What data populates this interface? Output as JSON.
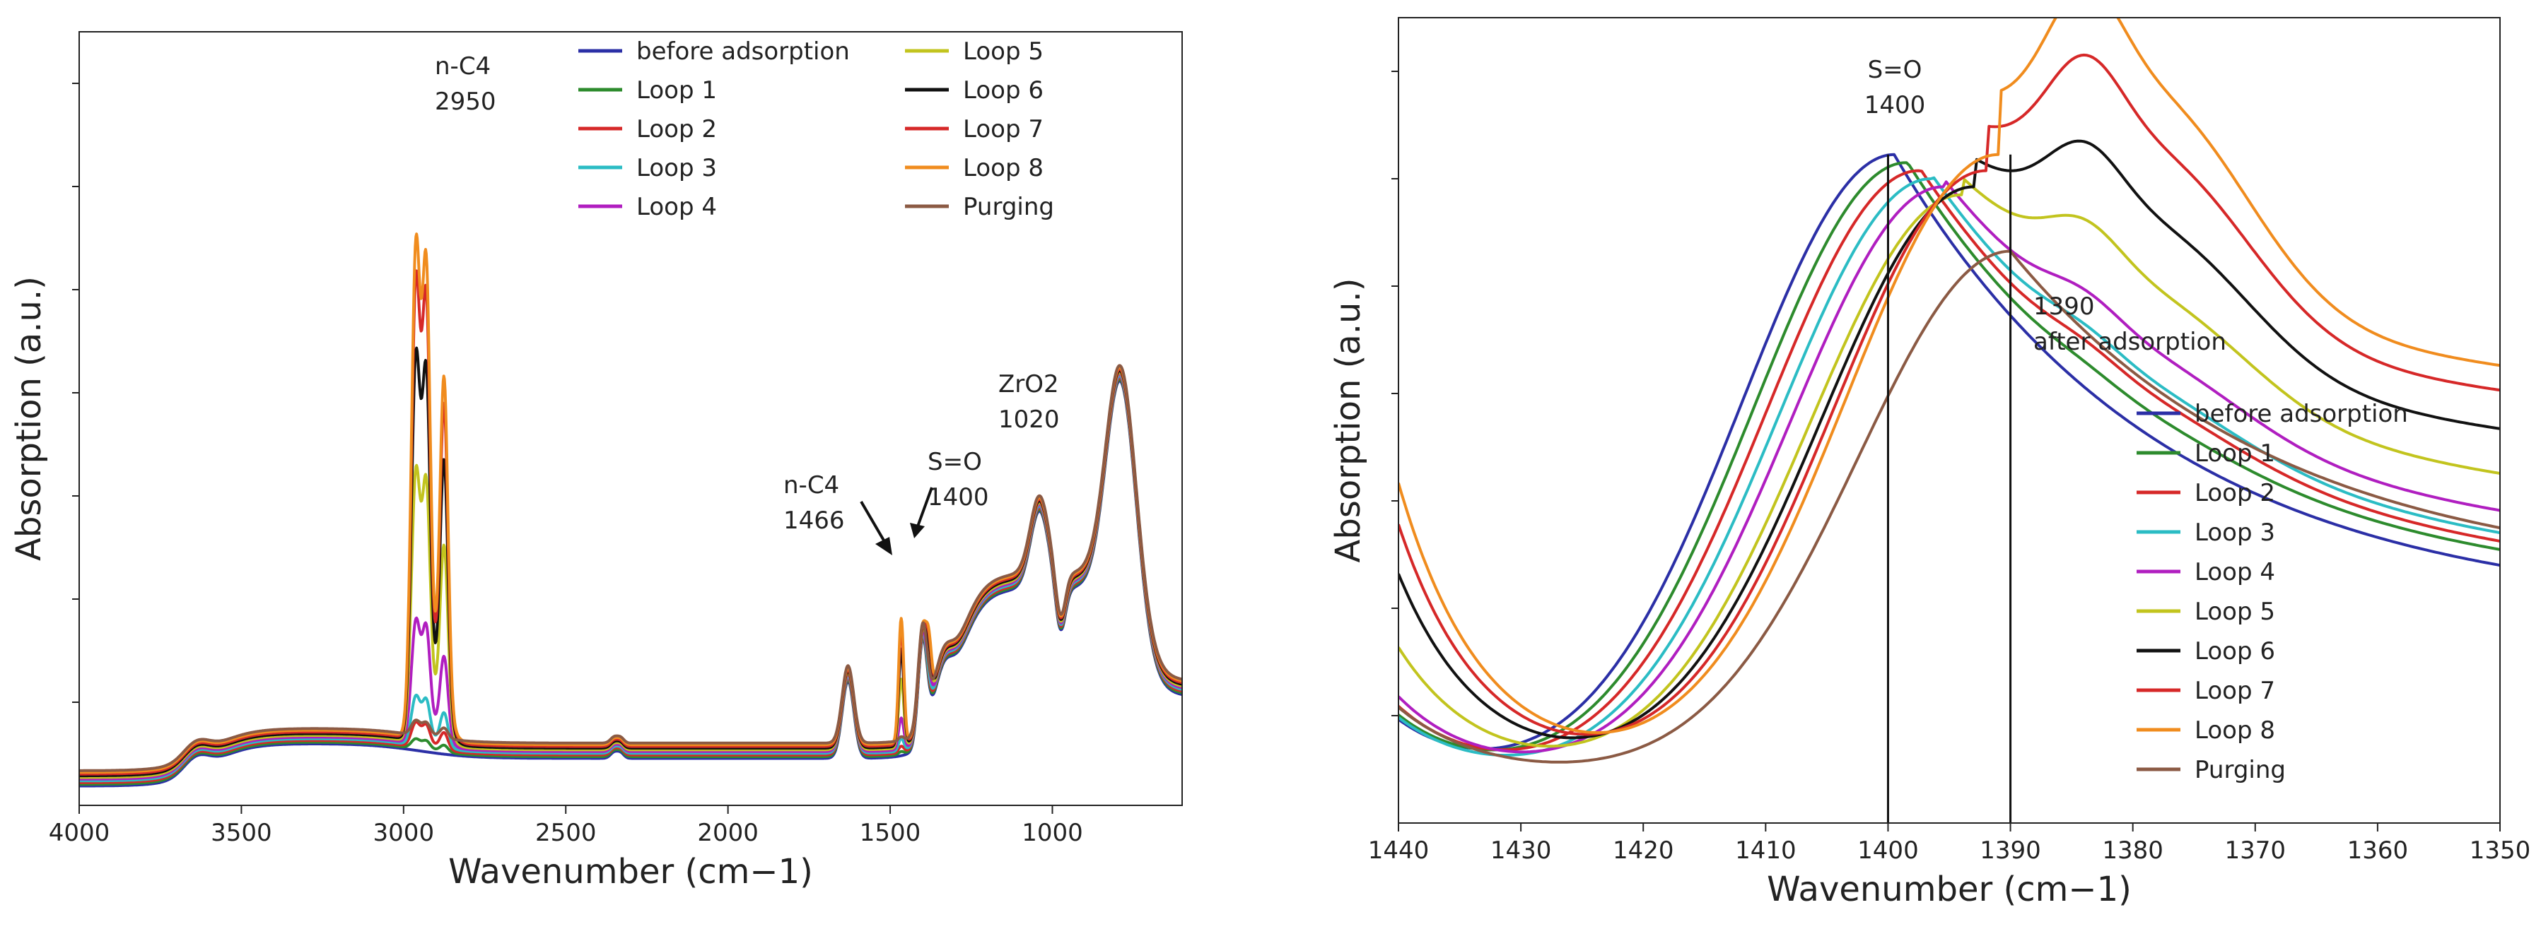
{
  "chart_data": [
    {
      "type": "line",
      "title": "",
      "xlabel": "Wavenumber (cm−1)",
      "ylabel": "Absorption (a.u.)",
      "xlim": [
        4000,
        600
      ],
      "ylim": [
        0,
        1
      ],
      "x_ticks": [
        4000,
        3500,
        3000,
        2500,
        2000,
        1500,
        1000
      ],
      "x_tick_labels": [
        "4000",
        "3500",
        "3000",
        "2500",
        "2000",
        "1500",
        "1000"
      ],
      "y_tick_labels_shown": false,
      "legend_position": "top-center",
      "legend_columns": 2,
      "series": [
        {
          "name": "before adsorption",
          "color": "#2b2fa6",
          "n_c4_scale": 0.0
        },
        {
          "name": "Loop 1",
          "color": "#2d8b2d",
          "n_c4_scale": 0.02
        },
        {
          "name": "Loop 2",
          "color": "#d62828",
          "n_c4_scale": 0.05
        },
        {
          "name": "Loop 3",
          "color": "#2bbcc4",
          "n_c4_scale": 0.1
        },
        {
          "name": "Loop 4",
          "color": "#b01ec0",
          "n_c4_scale": 0.25
        },
        {
          "name": "Loop 5",
          "color": "#c2c41e",
          "n_c4_scale": 0.55
        },
        {
          "name": "Loop 6",
          "color": "#111111",
          "n_c4_scale": 0.78
        },
        {
          "name": "Loop 7",
          "color": "#d62828",
          "n_c4_scale": 0.93
        },
        {
          "name": "Loop 8",
          "color": "#f08c1e",
          "n_c4_scale": 1.0
        },
        {
          "name": "Purging",
          "color": "#8b5a44",
          "n_c4_scale": 0.03
        }
      ],
      "annotations": [
        {
          "lines": [
            "n-C4",
            "2950"
          ],
          "x": 2950
        },
        {
          "lines": [
            "n-C4",
            "1466"
          ],
          "x": 1466
        },
        {
          "lines": [
            "S=O",
            "1400"
          ],
          "x": 1400
        },
        {
          "lines": [
            "ZrO2",
            "1020"
          ],
          "x": 1020
        }
      ]
    },
    {
      "type": "line",
      "title": "",
      "xlabel": "Wavenumber (cm−1)",
      "ylabel": "Absorption (a.u.)",
      "xlim": [
        1440,
        1350
      ],
      "ylim": [
        0,
        1
      ],
      "x_ticks": [
        1440,
        1430,
        1420,
        1410,
        1400,
        1390,
        1380,
        1370,
        1360,
        1350
      ],
      "x_tick_labels": [
        "1440",
        "1430",
        "1420",
        "1410",
        "1400",
        "1390",
        "1380",
        "1370",
        "1360",
        "1350"
      ],
      "y_tick_labels_shown": false,
      "legend_position": "lower-right",
      "legend_columns": 1,
      "vertical_lines": [
        1400,
        1390
      ],
      "series": [
        {
          "name": "before adsorption",
          "color": "#2b2fa6",
          "peak": 1399.5,
          "height": 0.83,
          "left": 0.085,
          "right": 0.26,
          "hump": 0.0
        },
        {
          "name": "Loop 1",
          "color": "#2d8b2d",
          "peak": 1398.5,
          "height": 0.82,
          "left": 0.09,
          "right": 0.28,
          "hump": 0.02
        },
        {
          "name": "Loop 2",
          "color": "#d62828",
          "peak": 1397.5,
          "height": 0.81,
          "left": 0.1,
          "right": 0.29,
          "hump": 0.04
        },
        {
          "name": "Loop 3",
          "color": "#2bbcc4",
          "peak": 1396.5,
          "height": 0.8,
          "left": 0.085,
          "right": 0.3,
          "hump": 0.05
        },
        {
          "name": "Loop 4",
          "color": "#b01ec0",
          "peak": 1395.5,
          "height": 0.79,
          "left": 0.11,
          "right": 0.33,
          "hump": 0.08
        },
        {
          "name": "Loop 5",
          "color": "#c2c41e",
          "peak": 1394.0,
          "height": 0.78,
          "left": 0.17,
          "right": 0.38,
          "hump": 0.15
        },
        {
          "name": "Loop 6",
          "color": "#111111",
          "peak": 1393.0,
          "height": 0.79,
          "left": 0.26,
          "right": 0.44,
          "hump": 0.22
        },
        {
          "name": "Loop 7",
          "color": "#d62828",
          "peak": 1392.0,
          "height": 0.81,
          "left": 0.32,
          "right": 0.49,
          "hump": 0.3
        },
        {
          "name": "Loop 8",
          "color": "#f08c1e",
          "peak": 1391.0,
          "height": 0.83,
          "left": 0.37,
          "right": 0.52,
          "hump": 0.36
        },
        {
          "name": "Purging",
          "color": "#8b5a44",
          "peak": 1390.0,
          "height": 0.71,
          "left": 0.09,
          "right": 0.3,
          "hump": 0.0
        }
      ],
      "annotations": [
        {
          "lines": [
            "S=O",
            "1400"
          ],
          "x": 1400
        },
        {
          "lines": [
            "1390",
            "after adsorption"
          ],
          "x": 1390
        }
      ]
    }
  ]
}
